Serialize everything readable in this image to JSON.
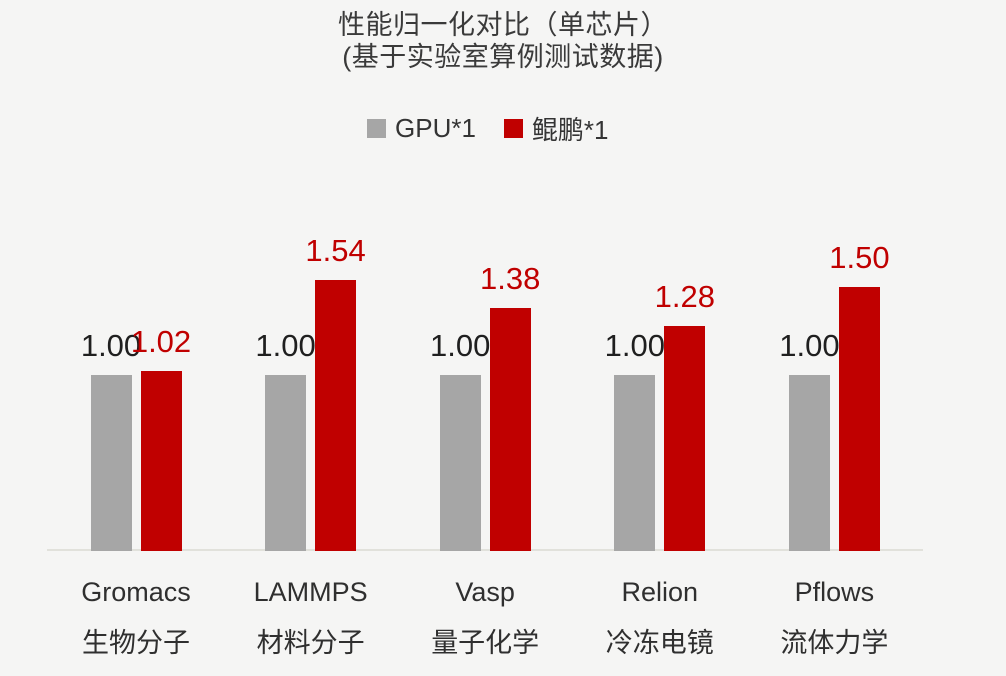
{
  "page": {
    "background_color": "#f5f5f4"
  },
  "header": {
    "title_line1": "性能归一化对比（单芯片）",
    "title_line2": "(基于实验室算例测试数据)"
  },
  "legend": {
    "position": "top",
    "items": [
      {
        "label": "GPU*1",
        "swatch_color": "#a6a6a6"
      },
      {
        "label": "鲲鹏*1",
        "swatch_color": "#c00000"
      }
    ]
  },
  "chart_data": {
    "type": "bar",
    "title": "性能归一化对比（单芯片）",
    "subtitle": "(基于实验室算例测试数据)",
    "grid": false,
    "y_axis_visible": false,
    "x_axis_line_visible": true,
    "legend_position": "top",
    "ylim": [
      0,
      1.9
    ],
    "categories": [
      "Gromacs",
      "LAMMPS",
      "Vasp",
      "Relion",
      "Pflows"
    ],
    "category_sublabels": [
      "生物分子",
      "材料分子",
      "量子化学",
      "冷冻电镜",
      "流体力学"
    ],
    "series": [
      {
        "name": "GPU*1",
        "key": "gpu",
        "color": "#a6a6a6",
        "label_color": "#1f1f1f",
        "values": [
          1.0,
          1.0,
          1.0,
          1.0,
          1.0
        ]
      },
      {
        "name": "鲲鹏*1",
        "key": "kunpeng",
        "color": "#c00000",
        "label_color": "#c00000",
        "values": [
          1.02,
          1.54,
          1.38,
          1.28,
          1.5
        ]
      }
    ],
    "value_label_decimals": 2
  },
  "colors": {
    "axis_line": "#e1e1db",
    "title_text": "#3a3a3a",
    "category_text": "#2f2f2f"
  }
}
